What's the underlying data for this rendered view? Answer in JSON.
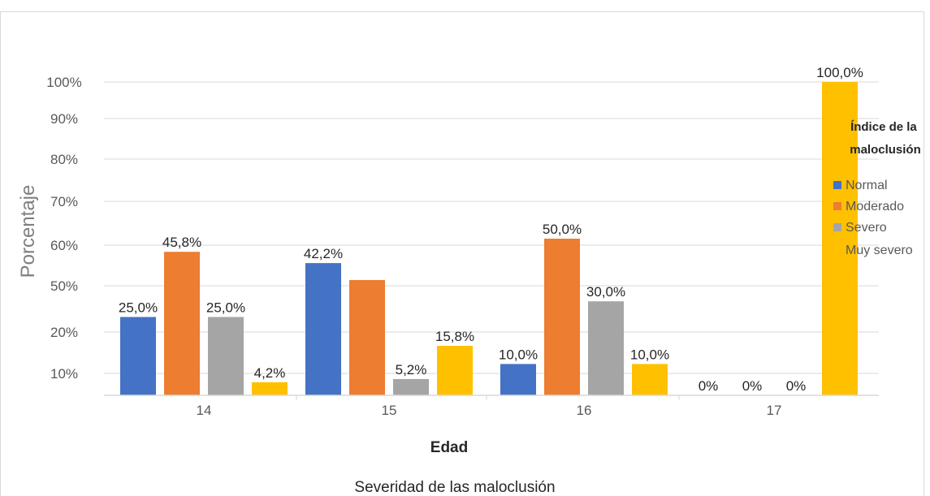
{
  "chart_data": {
    "type": "bar",
    "title": "",
    "caption": "Severidad de las maloclusión",
    "xlabel": "Edad",
    "ylabel": "Porcentaje",
    "categories": [
      "14",
      "15",
      "16",
      "17"
    ],
    "y_tick_labels": [
      "10%",
      "20%",
      "50%",
      "60%",
      "70%",
      "80%",
      "90%",
      "100%"
    ],
    "ylim": [
      0,
      100
    ],
    "legend": {
      "title": "Índice de la maloclusión",
      "position": "right"
    },
    "series": [
      {
        "name": "Normal",
        "color": "#4472C4",
        "values": [
          25.0,
          42.2,
          10.0,
          0
        ],
        "labels": [
          "25,0%",
          "42,2%",
          "10,0%",
          "0%"
        ]
      },
      {
        "name": "Moderado",
        "color": "#ED7D31",
        "values": [
          45.8,
          36.8,
          50.0,
          0
        ],
        "labels": [
          "45,8%",
          "",
          "50,0%",
          "0%"
        ]
      },
      {
        "name": "Severo",
        "color": "#A5A5A5",
        "values": [
          25.0,
          5.2,
          30.0,
          0
        ],
        "labels": [
          "25,0%",
          "5,2%",
          "30,0%",
          "0%"
        ]
      },
      {
        "name": "Muy severo",
        "color": "#FFC000",
        "values": [
          4.2,
          15.8,
          10.0,
          100.0
        ],
        "labels": [
          "4,2%",
          "15,8%",
          "10,0%",
          "100,0%"
        ]
      }
    ]
  }
}
